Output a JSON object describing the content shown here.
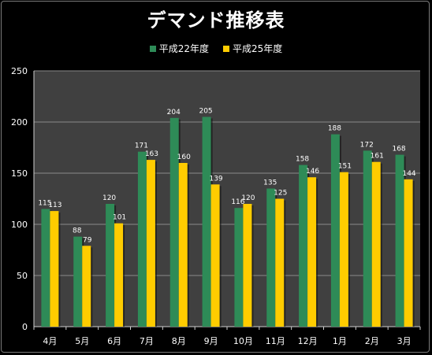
{
  "chart_data": {
    "type": "bar",
    "title": "デマンド推移表",
    "categories": [
      "4月",
      "5月",
      "6月",
      "7月",
      "8月",
      "9月",
      "10月",
      "11月",
      "12月",
      "1月",
      "2月",
      "3月"
    ],
    "series": [
      {
        "name": "平成22年度",
        "color": "#2e8b57",
        "values": [
          115,
          88,
          120,
          171,
          204,
          205,
          116,
          135,
          158,
          188,
          172,
          168
        ]
      },
      {
        "name": "平成25年度",
        "color": "#ffcc00",
        "values": [
          113,
          79,
          101,
          163,
          160,
          139,
          120,
          125,
          146,
          151,
          161,
          144
        ]
      }
    ],
    "ylim": [
      0,
      250
    ],
    "yticks": [
      0,
      50,
      100,
      150,
      200,
      250
    ],
    "xlabel": "",
    "ylabel": "",
    "grid": true,
    "legend_position": "top",
    "plot_background": "#404040"
  }
}
